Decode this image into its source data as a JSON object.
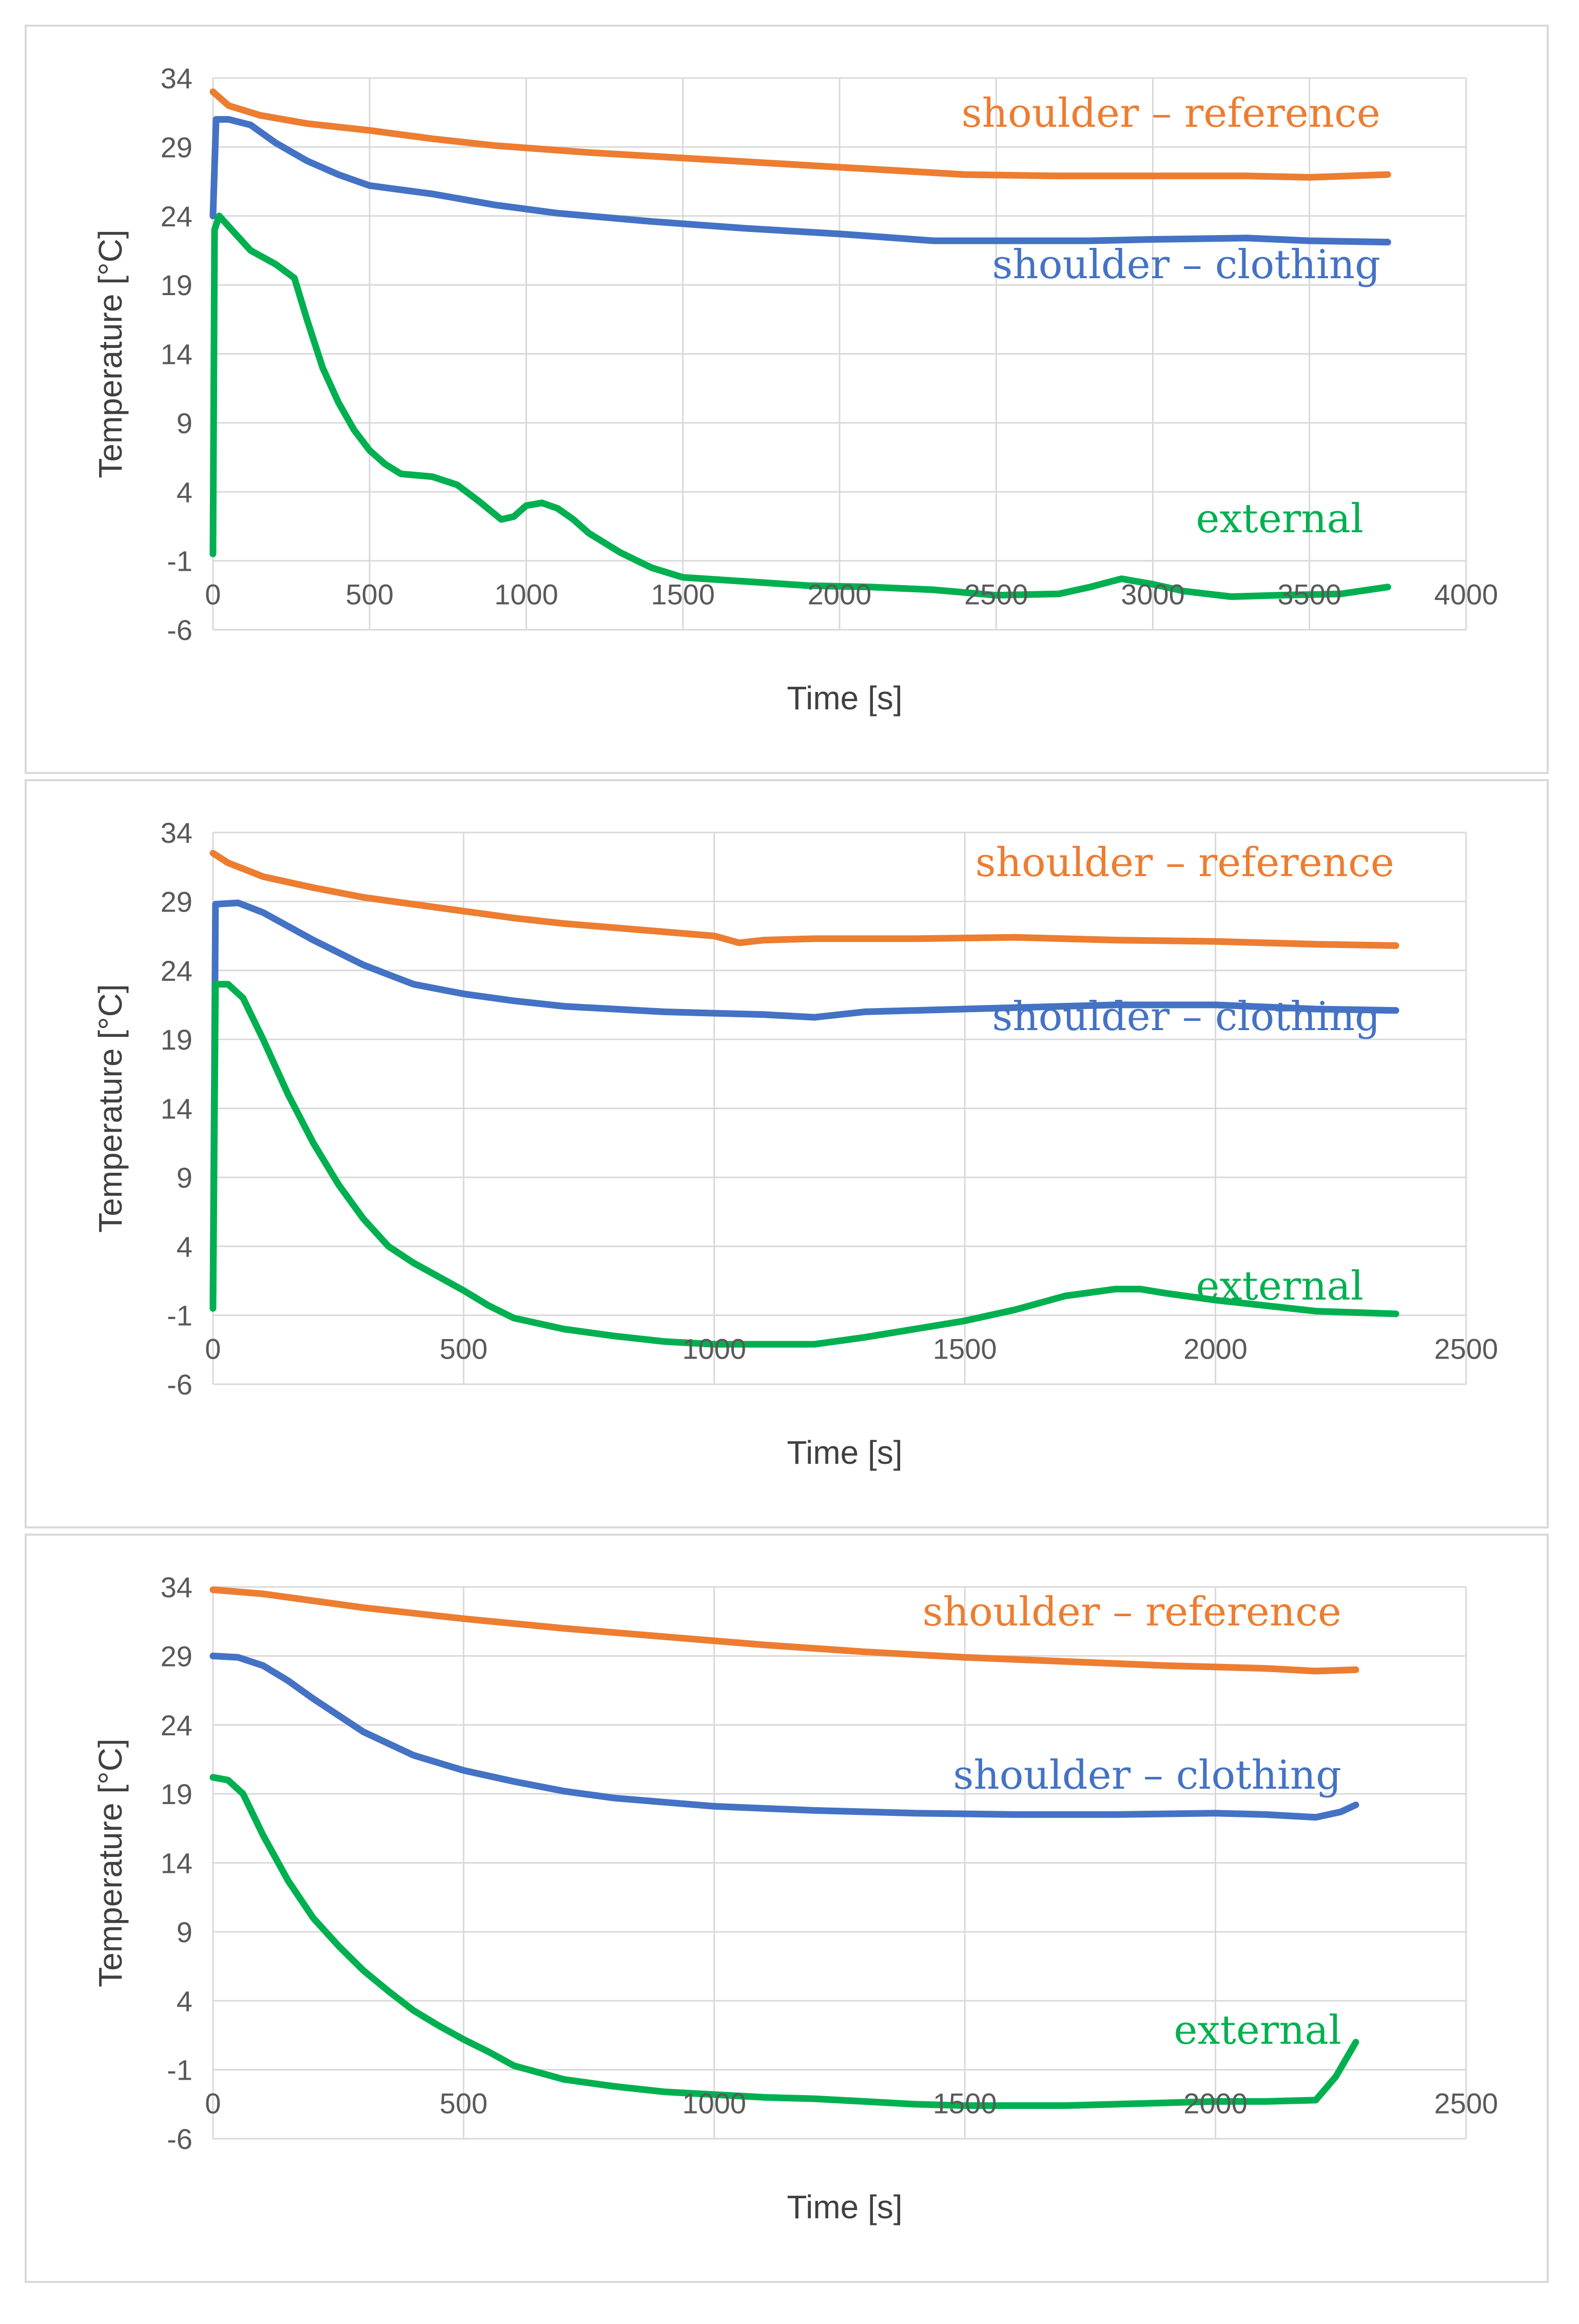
{
  "chart_data": [
    {
      "type": "line",
      "xlabel": "Time [s]",
      "ylabel": "Temperature [°C]",
      "xlim": [
        0,
        4000
      ],
      "ylim": [
        -6,
        34
      ],
      "xticks": [
        0,
        500,
        1000,
        1500,
        2000,
        2500,
        3000,
        3500,
        4000
      ],
      "yticks": [
        34,
        29,
        24,
        19,
        14,
        9,
        4,
        -1,
        -6
      ],
      "grid": true,
      "series": [
        {
          "name": "shoulder – reference",
          "color": "#ed7d31",
          "x": [
            0,
            50,
            150,
            300,
            500,
            700,
            900,
            1200,
            1500,
            1800,
            2100,
            2400,
            2700,
            3000,
            3300,
            3500,
            3750
          ],
          "y": [
            33,
            32,
            31.3,
            30.7,
            30.2,
            29.6,
            29.1,
            28.6,
            28.2,
            27.8,
            27.4,
            27.0,
            26.9,
            26.9,
            26.9,
            26.8,
            27.0
          ]
        },
        {
          "name": "shoulder – clothing",
          "color": "#4472c4",
          "x": [
            0,
            10,
            50,
            120,
            200,
            300,
            400,
            500,
            700,
            900,
            1100,
            1400,
            1700,
            2000,
            2300,
            2500,
            2800,
            3000,
            3300,
            3500,
            3750
          ],
          "y": [
            24,
            31,
            31,
            30.6,
            29.3,
            28,
            27,
            26.2,
            25.6,
            24.8,
            24.2,
            23.6,
            23.1,
            22.7,
            22.2,
            22.2,
            22.2,
            22.3,
            22.4,
            22.2,
            22.1
          ]
        },
        {
          "name": "external",
          "color": "#00b050",
          "x": [
            0,
            5,
            20,
            60,
            120,
            200,
            260,
            300,
            350,
            400,
            450,
            500,
            550,
            600,
            650,
            700,
            780,
            850,
            920,
            960,
            1000,
            1050,
            1100,
            1150,
            1200,
            1300,
            1400,
            1500,
            1700,
            1900,
            2100,
            2300,
            2500,
            2700,
            2800,
            2900,
            3000,
            3100,
            3250,
            3400,
            3600,
            3750
          ],
          "y": [
            -0.5,
            23,
            24,
            23,
            21.5,
            20.5,
            19.5,
            16.5,
            13,
            10.5,
            8.5,
            7,
            6,
            5.3,
            5.2,
            5.1,
            4.5,
            3.3,
            2,
            2.2,
            3,
            3.2,
            2.8,
            2,
            1,
            -0.4,
            -1.5,
            -2.2,
            -2.5,
            -2.8,
            -2.9,
            -3.1,
            -3.5,
            -3.4,
            -2.9,
            -2.3,
            -2.7,
            -3.2,
            -3.6,
            -3.5,
            -3.4,
            -2.9
          ]
        }
      ]
    },
    {
      "type": "line",
      "xlabel": "Time [s]",
      "ylabel": "Temperature [°C]",
      "xlim": [
        0,
        2500
      ],
      "ylim": [
        -6,
        34
      ],
      "xticks": [
        0,
        500,
        1000,
        1500,
        2000,
        2500
      ],
      "yticks": [
        34,
        29,
        24,
        19,
        14,
        9,
        4,
        -1,
        -6
      ],
      "grid": true,
      "series": [
        {
          "name": "shoulder – reference",
          "color": "#ed7d31",
          "x": [
            0,
            30,
            100,
            200,
            300,
            400,
            500,
            600,
            700,
            800,
            900,
            1000,
            1050,
            1100,
            1200,
            1400,
            1600,
            1800,
            2000,
            2200,
            2360
          ],
          "y": [
            32.5,
            31.8,
            30.8,
            30,
            29.3,
            28.8,
            28.3,
            27.8,
            27.4,
            27.1,
            26.8,
            26.5,
            26,
            26.2,
            26.3,
            26.3,
            26.4,
            26.2,
            26.1,
            25.9,
            25.8
          ]
        },
        {
          "name": "shoulder – clothing",
          "color": "#4472c4",
          "x": [
            0,
            5,
            50,
            100,
            200,
            300,
            400,
            500,
            600,
            700,
            800,
            900,
            1000,
            1100,
            1200,
            1300,
            1400,
            1600,
            1800,
            2000,
            2200,
            2360
          ],
          "y": [
            0,
            28.8,
            28.9,
            28.2,
            26.2,
            24.4,
            23,
            22.3,
            21.8,
            21.4,
            21.2,
            21,
            20.9,
            20.8,
            20.6,
            21,
            21.1,
            21.3,
            21.5,
            21.5,
            21.2,
            21.1
          ]
        },
        {
          "name": "external",
          "color": "#00b050",
          "x": [
            0,
            5,
            30,
            60,
            100,
            150,
            200,
            250,
            300,
            350,
            400,
            450,
            500,
            550,
            600,
            700,
            800,
            900,
            1000,
            1100,
            1200,
            1300,
            1400,
            1500,
            1600,
            1700,
            1800,
            1850,
            1900,
            2000,
            2100,
            2200,
            2360
          ],
          "y": [
            -0.5,
            23,
            23,
            22,
            19,
            15,
            11.5,
            8.5,
            6,
            4,
            2.8,
            1.8,
            0.8,
            -0.3,
            -1.2,
            -2,
            -2.5,
            -2.9,
            -3.1,
            -3.1,
            -3.1,
            -2.6,
            -2,
            -1.4,
            -0.6,
            0.4,
            0.9,
            0.9,
            0.6,
            0.1,
            -0.3,
            -0.7,
            -0.9
          ]
        }
      ]
    },
    {
      "type": "line",
      "xlabel": "Time [s]",
      "ylabel": "Temperature [°C]",
      "xlim": [
        0,
        2500
      ],
      "ylim": [
        -6,
        34
      ],
      "xticks": [
        0,
        500,
        1000,
        1500,
        2000,
        2500
      ],
      "yticks": [
        34,
        29,
        24,
        19,
        14,
        9,
        4,
        -1,
        -6
      ],
      "grid": true,
      "series": [
        {
          "name": "shoulder – reference",
          "color": "#ed7d31",
          "x": [
            0,
            100,
            300,
            500,
            700,
            900,
            1100,
            1300,
            1500,
            1700,
            1900,
            2100,
            2200,
            2280
          ],
          "y": [
            33.8,
            33.5,
            32.5,
            31.7,
            31,
            30.4,
            29.8,
            29.3,
            28.9,
            28.6,
            28.3,
            28.1,
            27.9,
            28
          ]
        },
        {
          "name": "shoulder – clothing",
          "color": "#4472c4",
          "x": [
            0,
            50,
            100,
            150,
            200,
            300,
            400,
            500,
            600,
            700,
            800,
            900,
            1000,
            1200,
            1400,
            1600,
            1800,
            2000,
            2100,
            2200,
            2250,
            2280
          ],
          "y": [
            29,
            28.9,
            28.3,
            27.2,
            25.9,
            23.5,
            21.8,
            20.7,
            19.9,
            19.2,
            18.7,
            18.4,
            18.1,
            17.8,
            17.6,
            17.5,
            17.5,
            17.6,
            17.5,
            17.3,
            17.7,
            18.2
          ]
        },
        {
          "name": "external",
          "color": "#00b050",
          "x": [
            0,
            30,
            60,
            100,
            150,
            200,
            250,
            300,
            350,
            400,
            450,
            500,
            550,
            600,
            700,
            800,
            900,
            1000,
            1100,
            1200,
            1300,
            1400,
            1500,
            1600,
            1700,
            1800,
            1900,
            2000,
            2100,
            2200,
            2240,
            2280
          ],
          "y": [
            20.2,
            20,
            19,
            16,
            12.7,
            10,
            8,
            6.2,
            4.7,
            3.3,
            2.2,
            1.2,
            0.3,
            -0.7,
            -1.7,
            -2.2,
            -2.6,
            -2.8,
            -3,
            -3.1,
            -3.3,
            -3.5,
            -3.6,
            -3.6,
            -3.6,
            -3.5,
            -3.4,
            -3.3,
            -3.3,
            -3.2,
            -1.5,
            1
          ]
        }
      ]
    }
  ]
}
